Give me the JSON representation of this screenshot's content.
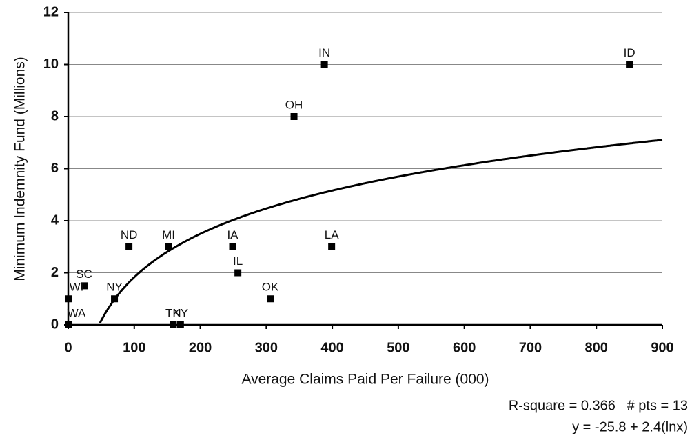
{
  "chart_data": {
    "type": "scatter",
    "x_label": "Average Claims Paid Per Failure (000)",
    "y_label": "Minimum Indemnity Fund (Millions)",
    "annotations": [
      "R-square = 0.366   # pts = 13",
      "y = -25.8 + 2.4(lnx)"
    ],
    "points": {
      "labels": [
        "IN",
        "ID",
        "OH",
        "ND",
        "MI",
        "IA",
        "LA",
        "IL",
        "OK",
        "NY",
        "SC",
        "WI",
        "WA",
        "TN",
        "KY"
      ],
      "x": [
        388,
        850,
        342,
        92,
        152,
        249,
        399,
        257,
        306,
        70,
        24,
        0,
        0,
        159,
        170
      ],
      "y": [
        10,
        10,
        8,
        3,
        3,
        3,
        3,
        2,
        1,
        1,
        1.5,
        1,
        0,
        0,
        0
      ],
      "color": "#000000"
    },
    "trendline": {
      "intercept": -25.8,
      "slope": 2.4,
      "color": "#000000"
    },
    "xlim": [
      0,
      900
    ],
    "ylim": [
      0,
      12
    ],
    "xticks": [
      0,
      100,
      200,
      300,
      400,
      500,
      600,
      700,
      800,
      900
    ],
    "yticks": [
      0,
      2,
      4,
      6,
      8,
      10,
      12
    ],
    "grid": true
  }
}
